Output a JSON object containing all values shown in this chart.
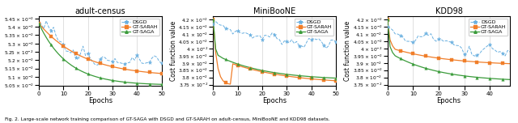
{
  "subplots": [
    {
      "title": "adult-census",
      "xlabel": "Epochs",
      "ylabel": "Cost function value",
      "ylim": [
        0.05045,
        0.05465
      ],
      "yticks": [
        0.0505,
        0.051,
        0.0515,
        0.052,
        0.0525,
        0.053,
        0.0535,
        0.054,
        0.0545
      ],
      "ytick_labels": [
        "5.05",
        "5.1",
        "5.15",
        "5.2",
        "5.25",
        "5.3",
        "5.35",
        "5.4",
        "5.45"
      ],
      "xlim": [
        0,
        50
      ],
      "xticks": [
        0,
        10,
        20,
        30,
        40,
        50
      ]
    },
    {
      "title": "MiniBooNE",
      "xlabel": "Epochs",
      "ylabel": "Cost function value",
      "ylim": [
        0.0374,
        0.04225
      ],
      "yticks": [
        0.0375,
        0.038,
        0.0385,
        0.039,
        0.0395,
        0.04,
        0.0405,
        0.041,
        0.0415,
        0.042
      ],
      "ytick_labels": [
        "3.75",
        "3.8",
        "3.85",
        "3.9",
        "3.95",
        "4",
        "4.05",
        "4.1",
        "4.15",
        "4.2"
      ],
      "xlim": [
        0,
        50
      ],
      "xticks": [
        0,
        10,
        20,
        30,
        40,
        50
      ]
    },
    {
      "title": "KDD98",
      "xlabel": "Epochs",
      "ylabel": "Cost function value",
      "ylim": [
        0.0374,
        0.04225
      ],
      "yticks": [
        0.0375,
        0.038,
        0.0385,
        0.039,
        0.0395,
        0.04,
        0.0405,
        0.041,
        0.0415,
        0.042
      ],
      "ytick_labels": [
        "3.75",
        "3.8",
        "3.85",
        "3.9",
        "3.95",
        "4",
        "4.05",
        "4.1",
        "4.15",
        "4.2"
      ],
      "xlim": [
        0,
        48
      ],
      "xticks": [
        0,
        10,
        20,
        30,
        40
      ]
    }
  ],
  "colors": {
    "DSGD": "#6ab0e0",
    "GT-SARAH": "#f07e2a",
    "GT-SAGA": "#3a9b3a"
  },
  "caption": "Fig. 2. Large-scale network training comparison of GT-SAGA with DSGD and GT-SARAH on adult-census, MiniBooNE and KDD98 datasets."
}
